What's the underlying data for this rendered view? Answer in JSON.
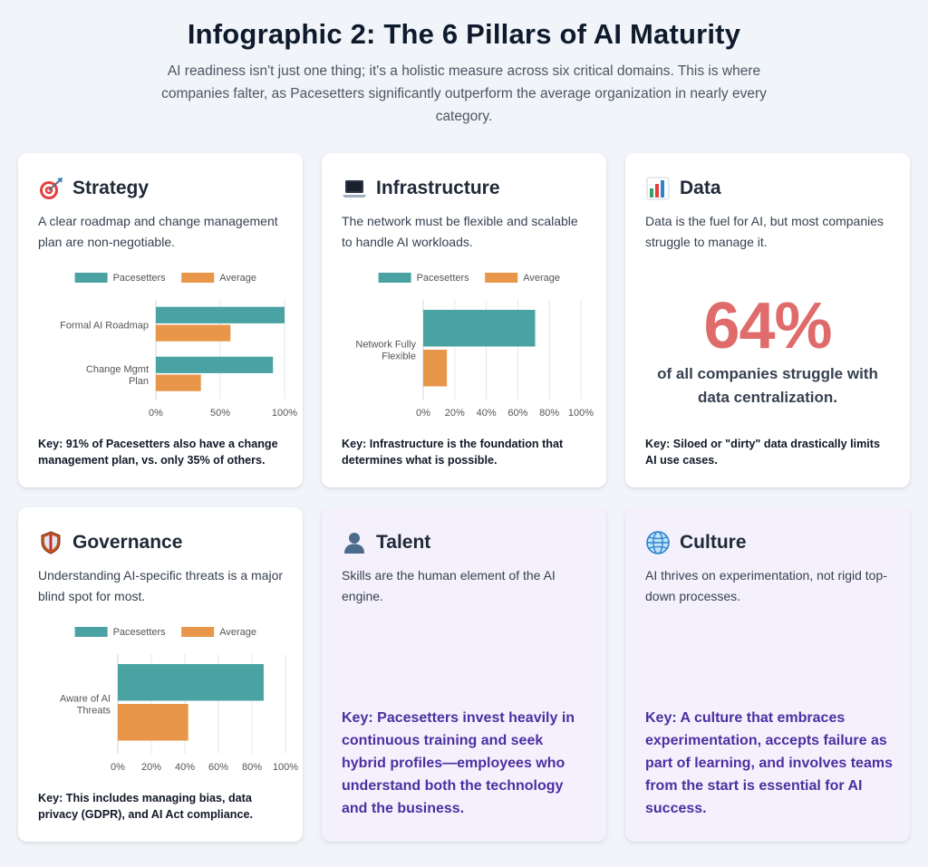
{
  "header": {
    "title": "Infographic 2: The 6 Pillars of AI Maturity",
    "subtitle": "AI readiness isn't just one thing; it's a holistic measure across six critical domains. This is where companies falter, as Pacesetters significantly outperform the average organization in nearly every category."
  },
  "colors": {
    "pacesetters": "#4aa3a2",
    "average": "#e8964a",
    "stat_red": "#e06b6b",
    "key_purple": "#4c2fa0"
  },
  "strategy": {
    "icon": "target-icon",
    "title": "Strategy",
    "desc": "A clear roadmap and change management plan are non-negotiable.",
    "key_label": "Key:",
    "key_text": "91% of Pacesetters also have a change management plan, vs. only 35% of others."
  },
  "infrastructure": {
    "icon": "laptop-icon",
    "title": "Infrastructure",
    "desc": "The network must be flexible and scalable to handle AI workloads.",
    "key_label": "Key:",
    "key_text": "Infrastructure is the foundation that determines what is possible."
  },
  "data_card": {
    "icon": "bar-chart-icon",
    "title": "Data",
    "desc": "Data is the fuel for AI, but most companies struggle to manage it.",
    "stat": "64%",
    "stat_caption": "of all companies struggle with data centralization.",
    "key_label": "Key:",
    "key_text": "Siloed or \"dirty\" data drastically limits AI use cases."
  },
  "governance": {
    "icon": "shield-icon",
    "title": "Governance",
    "desc": "Understanding AI-specific threats is a major blind spot for most.",
    "key_label": "Key:",
    "key_text": "This includes managing bias, data privacy (GDPR), and AI Act compliance."
  },
  "talent": {
    "icon": "person-icon",
    "title": "Talent",
    "desc": "Skills are the human element of the AI engine.",
    "key_label": "Key:",
    "key_text": "Pacesetters invest heavily in continuous training and seek hybrid profiles—employees who understand both the technology and the business."
  },
  "culture": {
    "icon": "globe-icon",
    "title": "Culture",
    "desc": "AI thrives on experimentation, not rigid top-down processes.",
    "key_label": "Key:",
    "key_text": "A culture that embraces experimentation, accepts failure as part of learning, and involves teams from the start is essential for AI success."
  },
  "chart_data": [
    {
      "id": "strategy",
      "type": "bar",
      "orientation": "horizontal",
      "legend_position": "top",
      "grid": true,
      "categories": [
        [
          "Formal AI Roadmap"
        ],
        [
          "Change Mgmt",
          "Plan"
        ]
      ],
      "series": [
        {
          "name": "Pacesetters",
          "values": [
            100,
            91
          ]
        },
        {
          "name": "Average",
          "values": [
            58,
            35
          ]
        }
      ],
      "xlim": [
        0,
        100
      ],
      "ticks": [
        "0%",
        "50%",
        "100%"
      ]
    },
    {
      "id": "infrastructure",
      "type": "bar",
      "orientation": "horizontal",
      "legend_position": "top",
      "grid": true,
      "categories": [
        [
          "Network Fully",
          "Flexible"
        ]
      ],
      "series": [
        {
          "name": "Pacesetters",
          "values": [
            71
          ]
        },
        {
          "name": "Average",
          "values": [
            15
          ]
        }
      ],
      "xlim": [
        0,
        100
      ],
      "ticks": [
        "0%",
        "20%",
        "40%",
        "60%",
        "80%",
        "100%"
      ]
    },
    {
      "id": "governance",
      "type": "bar",
      "orientation": "horizontal",
      "legend_position": "top",
      "grid": true,
      "categories": [
        [
          "Aware of AI",
          "Threats"
        ]
      ],
      "series": [
        {
          "name": "Pacesetters",
          "values": [
            87
          ]
        },
        {
          "name": "Average",
          "values": [
            42
          ]
        }
      ],
      "xlim": [
        0,
        100
      ],
      "ticks": [
        "0%",
        "20%",
        "40%",
        "60%",
        "80%",
        "100%"
      ]
    }
  ]
}
